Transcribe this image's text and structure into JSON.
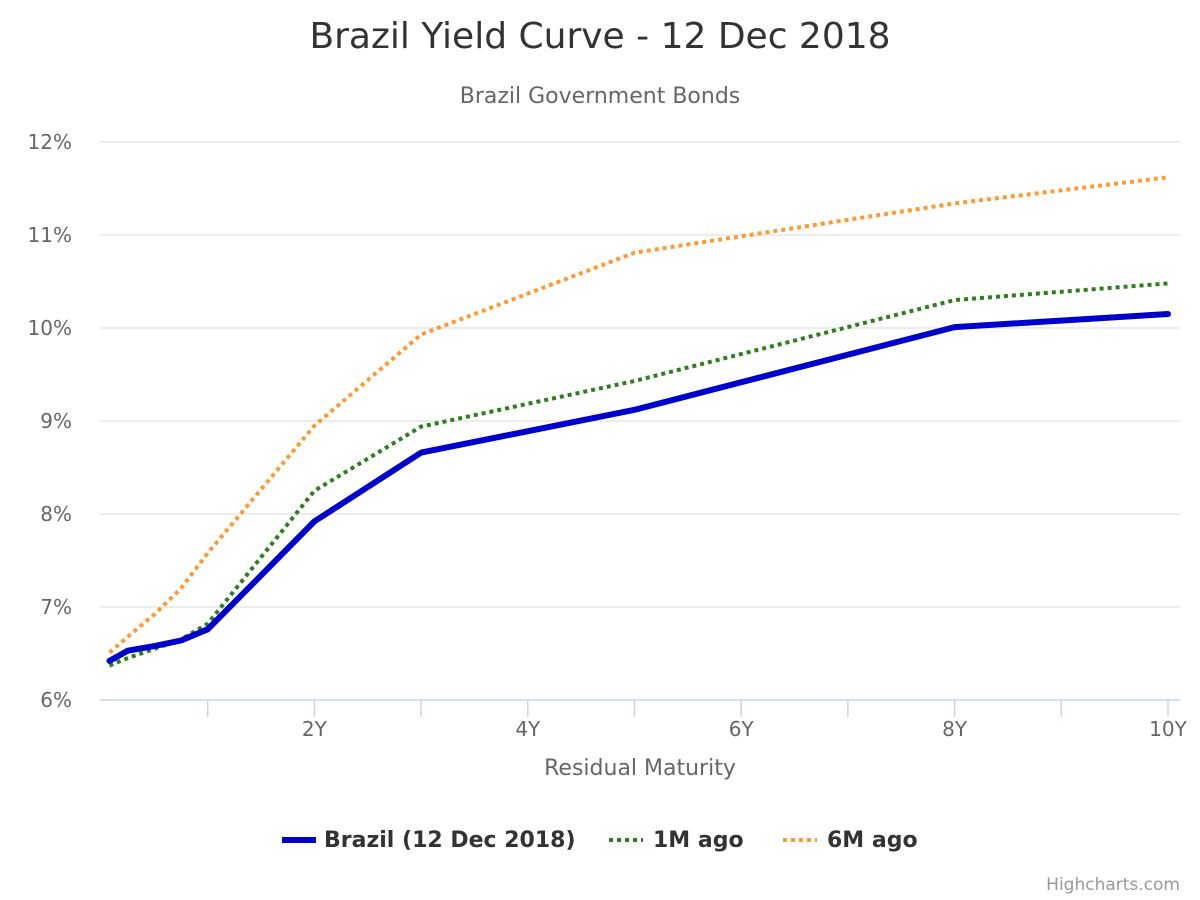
{
  "title": "Brazil Yield Curve - 12 Dec 2018",
  "subtitle": "Brazil Government Bonds",
  "credit": "Highcharts.com",
  "chart_data": {
    "type": "line",
    "title": "Brazil Yield Curve - 12 Dec 2018",
    "subtitle": "Brazil Government Bonds",
    "xlabel": "Residual Maturity",
    "ylabel": "",
    "x_unit": "years",
    "xlim": [
      0,
      10
    ],
    "ylim": [
      6,
      12
    ],
    "x_ticks": [
      {
        "value": 2,
        "label": "2Y"
      },
      {
        "value": 4,
        "label": "4Y"
      },
      {
        "value": 6,
        "label": "6Y"
      },
      {
        "value": 8,
        "label": "8Y"
      },
      {
        "value": 10,
        "label": "10Y"
      }
    ],
    "x_minor_ticks": [
      1,
      3,
      5,
      7,
      9,
      10
    ],
    "y_ticks": [
      {
        "value": 6,
        "label": "6%"
      },
      {
        "value": 7,
        "label": "7%"
      },
      {
        "value": 8,
        "label": "8%"
      },
      {
        "value": 9,
        "label": "9%"
      },
      {
        "value": 10,
        "label": "10%"
      },
      {
        "value": 11,
        "label": "11%"
      },
      {
        "value": 12,
        "label": "12%"
      }
    ],
    "grid": true,
    "legend_position": "bottom-center",
    "series": [
      {
        "name": "Brazil (12 Dec 2018)",
        "color": "#0000cc",
        "style": "solid",
        "x": [
          0.08,
          0.25,
          0.5,
          0.75,
          1,
          2,
          3,
          5,
          8,
          10
        ],
        "values": [
          6.42,
          6.53,
          6.58,
          6.64,
          6.76,
          7.92,
          8.66,
          9.12,
          10.01,
          10.15
        ]
      },
      {
        "name": "1M ago",
        "color": "#2e7d1f",
        "style": "dotted",
        "x": [
          0.08,
          0.25,
          0.5,
          0.75,
          1,
          2,
          3,
          5,
          8,
          10
        ],
        "values": [
          6.37,
          6.45,
          6.55,
          6.65,
          6.82,
          8.25,
          8.94,
          9.43,
          10.3,
          10.48
        ]
      },
      {
        "name": "6M ago",
        "color": "#ff9933",
        "style": "dotted",
        "x": [
          0.08,
          0.25,
          0.5,
          0.75,
          1,
          2,
          3,
          5,
          8,
          10
        ],
        "values": [
          6.51,
          6.68,
          6.92,
          7.2,
          7.58,
          8.95,
          9.93,
          10.81,
          11.34,
          11.62
        ]
      }
    ]
  }
}
